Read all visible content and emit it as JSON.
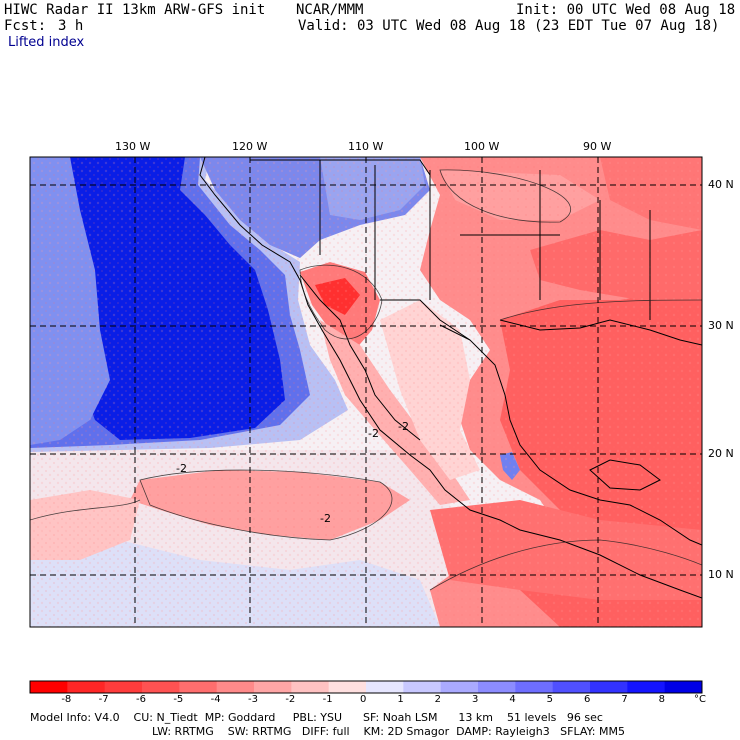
{
  "header": {
    "title": "HIWC Radar II 13km ARW-GFS init",
    "org": "NCAR/MMM",
    "init": "Init: 00 UTC Wed 08 Aug 18",
    "fcst_label": "Fcst:",
    "fcst_value": "3 h",
    "valid": "Valid: 03 UTC Wed 08 Aug 18 (23 EDT Tue 07 Aug 18)",
    "field": "Lifted index"
  },
  "map": {
    "lon_labels": [
      "130 W",
      "120 W",
      "110 W",
      "100 W",
      "90 W"
    ],
    "lat_labels": [
      "40 N",
      "30 N",
      "20 N",
      "10 N"
    ],
    "contour_labels": [
      "-2",
      "-2",
      "-2",
      "-2"
    ],
    "colors": {
      "ocean_stable": "#0820e0",
      "neutral": "#f4f4ff",
      "unstable": "#f07070"
    }
  },
  "colorbar": {
    "labels": [
      "-8",
      "-7",
      "-6",
      "-5",
      "-4",
      "-3",
      "-2",
      "-1",
      "0",
      "1",
      "2",
      "3",
      "4",
      "5",
      "6",
      "7",
      "8"
    ],
    "unit": "°C",
    "colors": [
      "#ff0000",
      "#ff2626",
      "#ff3c3c",
      "#ff5252",
      "#ff6e6e",
      "#ff8a8a",
      "#ffa6a6",
      "#ffc2c2",
      "#ffe0e0",
      "#e6e6ff",
      "#c8c8ff",
      "#aaaaff",
      "#8c8cff",
      "#6e6eff",
      "#5050ff",
      "#3232ff",
      "#1414ff",
      "#0000e6"
    ]
  },
  "footer": {
    "line1": "Model Info: V4.0    CU: N_Tiedt  MP: Goddard     PBL: YSU      SF: Noah LSM      13 km    51 levels   96 sec",
    "line2": "LW: RRTMG    SW: RRTMG   DIFF: full    KM: 2D Smagor  DAMP: Rayleigh3   SFLAY: MM5"
  }
}
